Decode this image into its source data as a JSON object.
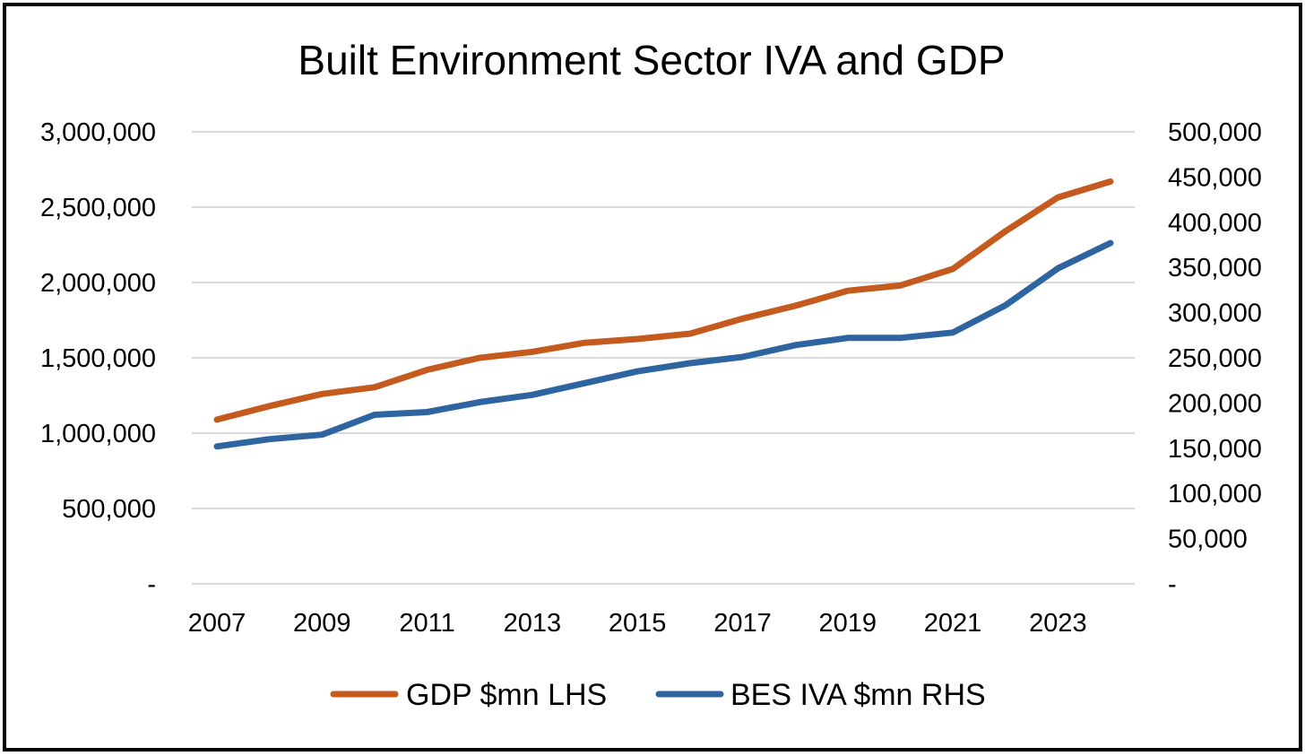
{
  "chart_data": {
    "type": "line",
    "title": "Built Environment Sector IVA and GDP",
    "x": [
      2007,
      2008,
      2009,
      2010,
      2011,
      2012,
      2013,
      2014,
      2015,
      2016,
      2017,
      2018,
      2019,
      2020,
      2021,
      2022,
      2023,
      2024
    ],
    "x_tick_labels": [
      "2007",
      "2009",
      "2011",
      "2013",
      "2015",
      "2017",
      "2019",
      "2021",
      "2023"
    ],
    "y_left": {
      "ylim": [
        0,
        3000000
      ],
      "tick_labels": [
        "-",
        "500,000",
        "1,000,000",
        "1,500,000",
        "2,000,000",
        "2,500,000",
        "3,000,000"
      ]
    },
    "y_right": {
      "ylim": [
        0,
        500000
      ],
      "tick_labels": [
        "-",
        "50,000",
        "100,000",
        "150,000",
        "200,000",
        "250,000",
        "300,000",
        "350,000",
        "400,000",
        "450,000",
        "500,000"
      ]
    },
    "series": [
      {
        "name": "GDP $mn LHS",
        "axis": "left",
        "color": "#c55a1e",
        "values": [
          1090000,
          1180000,
          1260000,
          1305000,
          1420000,
          1500000,
          1540000,
          1600000,
          1625000,
          1660000,
          1760000,
          1845000,
          1945000,
          1980000,
          2090000,
          2340000,
          2565000,
          2670000
        ]
      },
      {
        "name": "BES IVA $mn RHS",
        "axis": "right",
        "color": "#2e64a0",
        "values": [
          152000,
          160000,
          165000,
          187000,
          190000,
          201000,
          209000,
          222000,
          235000,
          244000,
          251000,
          264000,
          272000,
          272000,
          278000,
          308000,
          349000,
          377000
        ]
      }
    ],
    "grid": true,
    "legend_position": "bottom"
  }
}
